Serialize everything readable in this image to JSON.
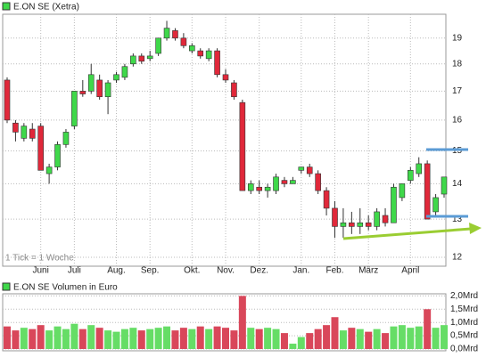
{
  "chart_data": [
    {
      "type": "candlestick",
      "title": "E.ON SE (Xetra)",
      "annotation": "1 Tick = 1 Woche",
      "log": true,
      "grid": true,
      "up_color": "#3fd84a",
      "down_color": "#e0283a",
      "legend_color": "#3fd84a",
      "categories": [
        null,
        null,
        null,
        null,
        "Juni",
        null,
        null,
        null,
        "Juli",
        null,
        null,
        null,
        null,
        "Aug.",
        null,
        null,
        null,
        "Sep.",
        null,
        null,
        null,
        null,
        "Okt.",
        null,
        null,
        null,
        "Nov.",
        null,
        null,
        null,
        "Dez.",
        null,
        null,
        null,
        null,
        "Jan.",
        null,
        null,
        null,
        "Feb.",
        null,
        null,
        null,
        "März",
        null,
        null,
        null,
        null,
        "April",
        null,
        null,
        null,
        null
      ],
      "open": [
        17.4,
        15.9,
        15.4,
        15.7,
        15.8,
        14.3,
        14.5,
        15.2,
        15.8,
        17.0,
        17.0,
        17.4,
        16.8,
        17.4,
        17.5,
        18.0,
        18.3,
        18.2,
        18.4,
        19.0,
        19.3,
        19.0,
        18.5,
        18.5,
        18.2,
        18.5,
        17.6,
        17.3,
        16.6,
        13.8,
        13.9,
        13.8,
        13.8,
        14.1,
        14.0,
        14.4,
        14.5,
        14.3,
        13.8,
        13.3,
        12.8,
        12.9,
        12.8,
        12.9,
        12.8,
        13.1,
        12.9,
        13.6,
        14.1,
        14.3,
        14.6,
        13.2,
        13.7
      ],
      "high": [
        17.5,
        16.0,
        15.9,
        15.9,
        15.9,
        14.6,
        15.3,
        15.7,
        17.0,
        17.4,
        18.0,
        17.6,
        17.4,
        17.7,
        18.0,
        18.4,
        18.4,
        18.5,
        19.0,
        19.7,
        19.4,
        19.2,
        18.8,
        18.6,
        18.6,
        18.6,
        17.8,
        17.4,
        16.7,
        14.1,
        14.1,
        14.0,
        14.3,
        14.2,
        14.2,
        14.5,
        14.6,
        14.4,
        13.9,
        13.5,
        13.3,
        13.2,
        13.3,
        13.1,
        13.3,
        13.3,
        14.0,
        14.0,
        14.5,
        14.8,
        14.7,
        13.7,
        14.2
      ],
      "low": [
        15.9,
        15.3,
        15.3,
        15.3,
        14.4,
        14.0,
        14.4,
        15.1,
        15.7,
        16.8,
        16.9,
        16.7,
        16.2,
        17.3,
        17.4,
        17.9,
        18.0,
        18.1,
        18.3,
        18.9,
        18.9,
        18.6,
        18.4,
        18.2,
        18.1,
        17.5,
        17.3,
        16.7,
        13.8,
        13.7,
        13.7,
        13.6,
        13.7,
        13.9,
        14.0,
        14.3,
        14.2,
        13.7,
        13.1,
        12.5,
        12.5,
        12.6,
        12.6,
        12.7,
        12.7,
        12.8,
        12.9,
        13.5,
        14.0,
        14.2,
        13.0,
        13.1,
        13.6
      ],
      "close": [
        16.0,
        15.6,
        15.8,
        15.4,
        14.4,
        14.5,
        15.2,
        15.6,
        17.0,
        16.9,
        17.6,
        16.8,
        17.3,
        17.6,
        17.9,
        18.3,
        18.1,
        18.3,
        19.0,
        19.4,
        19.0,
        18.7,
        18.7,
        18.3,
        18.5,
        17.6,
        17.4,
        16.8,
        13.8,
        14.0,
        13.8,
        13.9,
        14.2,
        14.0,
        14.1,
        14.5,
        14.3,
        13.8,
        13.3,
        12.8,
        12.9,
        12.8,
        12.9,
        12.8,
        13.2,
        12.9,
        13.9,
        14.0,
        14.4,
        14.6,
        13.0,
        13.6,
        14.2
      ],
      "ylim": [
        11.8,
        19.9
      ],
      "yticks": [
        12,
        13,
        14,
        15,
        16,
        17,
        18,
        19
      ]
    },
    {
      "type": "bar",
      "title": "E.ON SE Volumen in Euro",
      "legend_color": "#3fd84a",
      "up_color": "#66dd66",
      "down_color": "#d9475a",
      "values": [
        0.85,
        0.7,
        0.8,
        0.75,
        0.9,
        0.7,
        0.85,
        0.75,
        0.95,
        0.75,
        0.9,
        0.8,
        0.7,
        0.65,
        0.75,
        0.8,
        0.7,
        0.75,
        0.8,
        0.85,
        0.7,
        0.8,
        0.75,
        0.85,
        0.75,
        0.85,
        0.8,
        0.7,
        2.0,
        0.8,
        0.75,
        0.8,
        0.75,
        0.6,
        0.2,
        0.45,
        0.6,
        0.75,
        0.9,
        1.2,
        0.7,
        0.8,
        0.75,
        0.65,
        0.75,
        0.6,
        0.85,
        0.9,
        0.8,
        0.85,
        1.5,
        0.8,
        0.9
      ],
      "ylim": [
        0,
        2.08
      ],
      "yticks": [
        {
          "value": 0,
          "label": "0,0Mrd"
        },
        {
          "value": 0.5,
          "label": "0,5Mrd"
        },
        {
          "value": 1,
          "label": "1,0Mrd"
        },
        {
          "value": 1.5,
          "label": "1,5Mrd"
        },
        {
          "value": 2,
          "label": "2,0Mrd"
        }
      ]
    }
  ]
}
